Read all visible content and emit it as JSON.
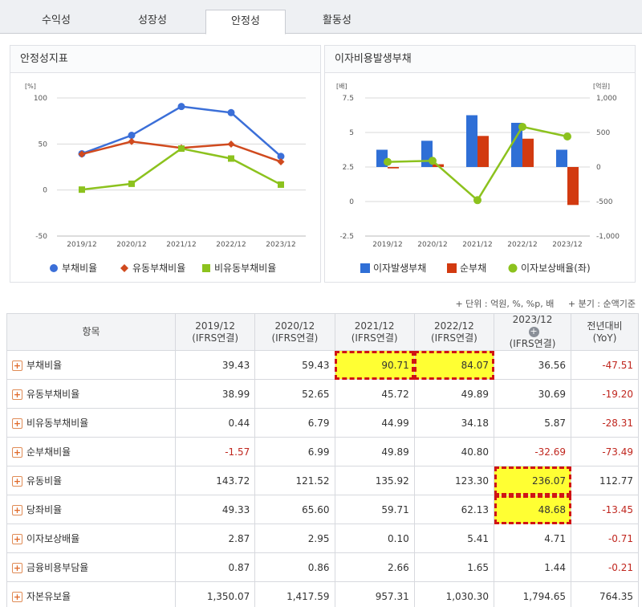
{
  "tabs": [
    {
      "label": "수익성"
    },
    {
      "label": "성장성"
    },
    {
      "label": "안정성"
    },
    {
      "label": "활동성"
    }
  ],
  "active_tab": "안정성",
  "chart_data": [
    {
      "type": "line",
      "title": "안정성지표",
      "ylabel": "[%]",
      "categories": [
        "2019/12",
        "2020/12",
        "2021/12",
        "2022/12",
        "2023/12"
      ],
      "ylim": [
        -50,
        100
      ],
      "yticks": [
        -50,
        0,
        50,
        100
      ],
      "grid": true,
      "legend": "bottom",
      "series": [
        {
          "name": "부채비율",
          "values": [
            39.43,
            59.43,
            90.71,
            84.07,
            36.56
          ],
          "color": "#3b6fd8",
          "marker": "circle"
        },
        {
          "name": "유동부채비율",
          "values": [
            38.99,
            52.65,
            45.72,
            49.89,
            30.69
          ],
          "color": "#d04a1e",
          "marker": "diamond"
        },
        {
          "name": "비유동부채비율",
          "values": [
            0.44,
            6.79,
            44.99,
            34.18,
            5.87
          ],
          "color": "#8cc21e",
          "marker": "square"
        }
      ]
    },
    {
      "type": "bar",
      "title": "이자비용발생부채",
      "ylabel_left": "[배]",
      "ylabel_right": "[억원]",
      "categories": [
        "2019/12",
        "2020/12",
        "2021/12",
        "2022/12",
        "2023/12"
      ],
      "ylim_left": [
        -2.5,
        7.5
      ],
      "yticks_left": [
        "7.5",
        "5",
        "2.5",
        "0",
        "-2.5"
      ],
      "ylim_right": [
        -1000,
        1000
      ],
      "yticks_right": [
        "1,000",
        "500",
        "0",
        "-500",
        "-1,000"
      ],
      "grid": true,
      "legend": "bottom",
      "series": [
        {
          "name": "이자발생부채",
          "type": "bar",
          "axis": "right",
          "values": [
            250,
            380,
            750,
            640,
            250
          ],
          "color": "#2f6fd6"
        },
        {
          "name": "순부채",
          "type": "bar",
          "axis": "right",
          "values": [
            -20,
            40,
            450,
            410,
            -550
          ],
          "color": "#d23a10"
        },
        {
          "name": "이자보상배율(좌)",
          "type": "line",
          "axis": "left",
          "values": [
            2.87,
            2.95,
            0.1,
            5.41,
            4.71
          ],
          "color": "#8cc21e"
        }
      ]
    }
  ],
  "table": {
    "units_text": "+ 단위 : 억원, %, %p, 배",
    "period_text": "+ 분기 : 순액기준",
    "headers": [
      {
        "line1": "항목",
        "line2": ""
      },
      {
        "line1": "2019/12",
        "line2": "(IFRS연결)"
      },
      {
        "line1": "2020/12",
        "line2": "(IFRS연결)"
      },
      {
        "line1": "2021/12",
        "line2": "(IFRS연결)"
      },
      {
        "line1": "2022/12",
        "line2": "(IFRS연결)"
      },
      {
        "line1": "2023/12",
        "line2": "(IFRS연결)"
      },
      {
        "line1": "전년대비",
        "line2": "(YoY)"
      }
    ],
    "rows": [
      {
        "name": "부채비율",
        "values": [
          "39.43",
          "59.43",
          "90.71",
          "84.07",
          "36.56"
        ],
        "yoy": "-47.51"
      },
      {
        "name": "유동부채비율",
        "values": [
          "38.99",
          "52.65",
          "45.72",
          "49.89",
          "30.69"
        ],
        "yoy": "-19.20"
      },
      {
        "name": "비유동부채비율",
        "values": [
          "0.44",
          "6.79",
          "44.99",
          "34.18",
          "5.87"
        ],
        "yoy": "-28.31"
      },
      {
        "name": "순부채비율",
        "values": [
          "-1.57",
          "6.99",
          "49.89",
          "40.80",
          "-32.69"
        ],
        "yoy": "-73.49"
      },
      {
        "name": "유동비율",
        "values": [
          "143.72",
          "121.52",
          "135.92",
          "123.30",
          "236.07"
        ],
        "yoy": "112.77"
      },
      {
        "name": "당좌비율",
        "values": [
          "49.33",
          "65.60",
          "59.71",
          "62.13",
          "48.68"
        ],
        "yoy": "-13.45"
      },
      {
        "name": "이자보상배율",
        "values": [
          "2.87",
          "2.95",
          "0.10",
          "5.41",
          "4.71"
        ],
        "yoy": "-0.71"
      },
      {
        "name": "금융비용부담율",
        "values": [
          "0.87",
          "0.86",
          "2.66",
          "1.65",
          "1.44"
        ],
        "yoy": "-0.21"
      },
      {
        "name": "자본유보율",
        "values": [
          "1,350.07",
          "1,417.59",
          "957.31",
          "1,030.30",
          "1,794.65"
        ],
        "yoy": "764.35"
      }
    ],
    "highlighted_cells": [
      "부채비율:2021/12",
      "부채비율:2022/12",
      "유동비율:2023/12",
      "당좌비율:2023/12"
    ]
  },
  "colors": {
    "negative": "#c0261e",
    "highlight_fill": "#ffff33",
    "highlight_border": "#d01414"
  },
  "icons": {
    "expand_row": "plus-icon",
    "add_column": "circle-plus-icon"
  }
}
